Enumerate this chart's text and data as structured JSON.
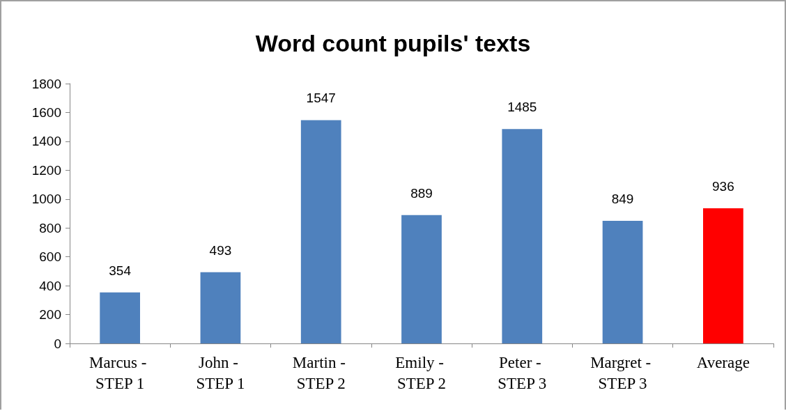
{
  "chart_data": {
    "type": "bar",
    "title": "Word count pupils' texts",
    "categories": [
      "Marcus - STEP 1",
      "John - STEP 1",
      "Martin - STEP 2",
      "Emily - STEP 2",
      "Peter - STEP 3",
      "Margret - STEP 3",
      "Average"
    ],
    "values": [
      354,
      493,
      1547,
      889,
      1485,
      849,
      936
    ],
    "colors": [
      "#4f81bd",
      "#4f81bd",
      "#4f81bd",
      "#4f81bd",
      "#4f81bd",
      "#4f81bd",
      "#ff0000"
    ],
    "ylim": [
      0,
      1800
    ],
    "yticks": [
      0,
      200,
      400,
      600,
      800,
      1000,
      1200,
      1400,
      1600,
      1800
    ],
    "data_labels": true,
    "grid": false
  }
}
